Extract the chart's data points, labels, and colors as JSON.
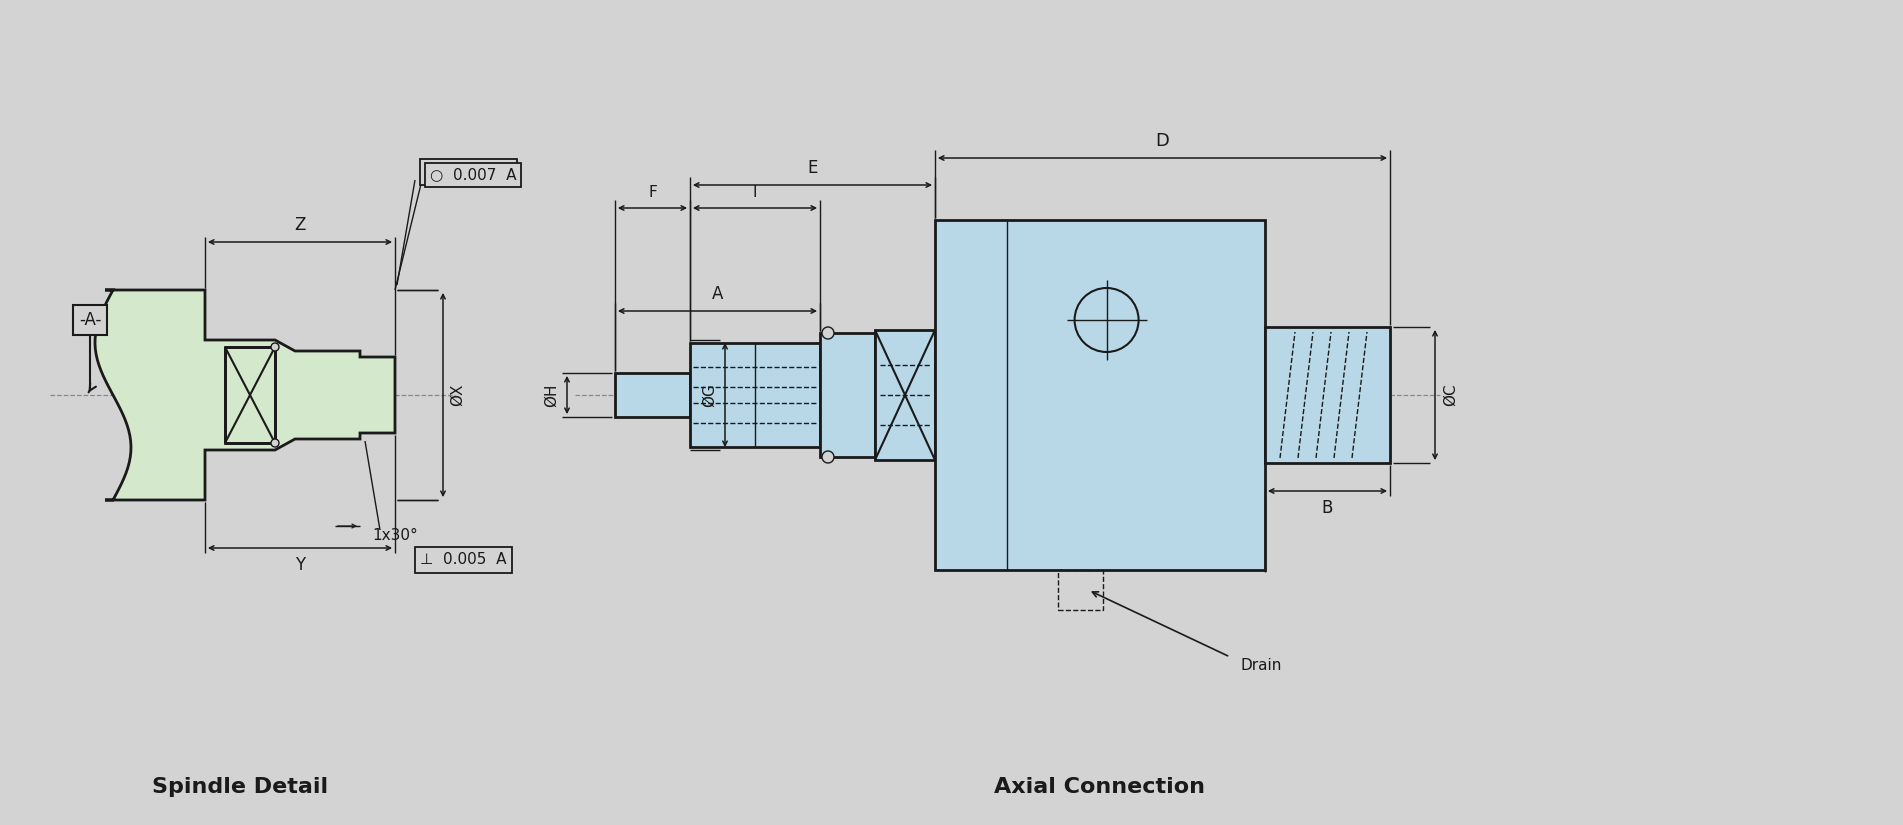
{
  "bg_color": "#d3d3d3",
  "line_color": "#1a1a1a",
  "green_fill": "#d4e8cc",
  "blue_fill": "#b8d8e8",
  "title_spindle": "Spindle Detail",
  "title_axial": "Axial Connection",
  "label_A_ref": "-A-",
  "label_circularity": "○  0.007  A",
  "label_perp": "⊥  0.005  A",
  "label_Z": "Z",
  "label_Y": "Y",
  "label_X": "ØX",
  "label_chamfer": "1x30°",
  "label_D": "D",
  "label_E": "E",
  "label_F": "F",
  "label_I": "I",
  "label_H": "ØH",
  "label_A": "A",
  "label_G": "ØG",
  "label_C": "ØC",
  "label_B": "B",
  "label_drain": "Drain",
  "centerline_color": "#888888",
  "dash_color": "#1a1a1a"
}
